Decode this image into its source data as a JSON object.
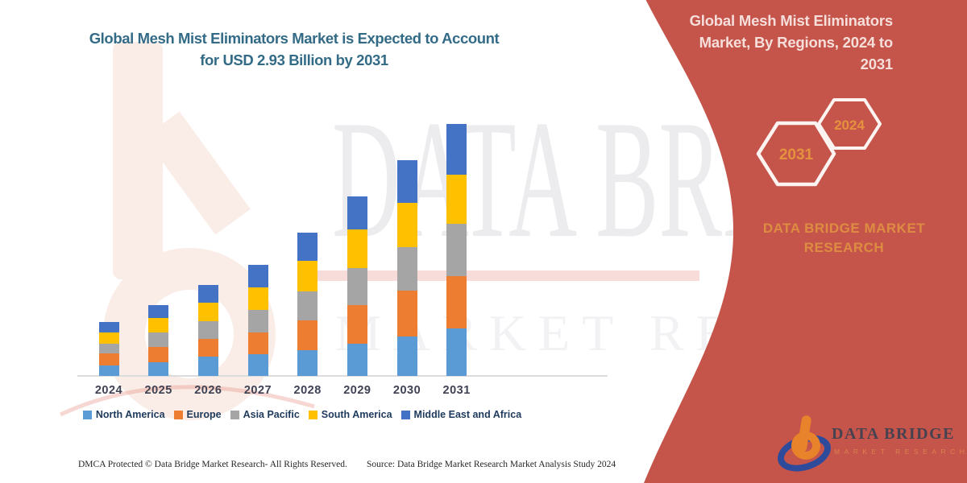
{
  "chart": {
    "title_line1": "Global Mesh Mist Eliminators Market is Expected to Account",
    "title_line2": "for USD 2.93 Billion by 2031"
  },
  "watermark": {
    "line1": "DATA BRIDGE",
    "line2": "MARKET RESEARCH"
  },
  "chart_data": {
    "type": "bar",
    "stacked": true,
    "unit": "USD Billion",
    "categories": [
      "2024",
      "2025",
      "2026",
      "2027",
      "2028",
      "2029",
      "2030",
      "2031"
    ],
    "series": [
      {
        "name": "North America",
        "color": "#5B9BD5",
        "values": [
          0.12,
          0.16,
          0.22,
          0.25,
          0.3,
          0.37,
          0.46,
          0.55
        ]
      },
      {
        "name": "Europe",
        "color": "#ED7D31",
        "values": [
          0.14,
          0.18,
          0.21,
          0.26,
          0.35,
          0.45,
          0.53,
          0.61
        ]
      },
      {
        "name": "Asia Pacific",
        "color": "#A5A5A5",
        "values": [
          0.11,
          0.17,
          0.21,
          0.26,
          0.33,
          0.43,
          0.51,
          0.61
        ]
      },
      {
        "name": "South America",
        "color": "#FFC000",
        "values": [
          0.14,
          0.16,
          0.21,
          0.26,
          0.36,
          0.45,
          0.51,
          0.57
        ]
      },
      {
        "name": "Middle East and Africa",
        "color": "#4472C4",
        "values": [
          0.12,
          0.15,
          0.21,
          0.26,
          0.33,
          0.39,
          0.5,
          0.59
        ]
      }
    ],
    "totals": [
      0.63,
      0.82,
      1.06,
      1.29,
      1.67,
      2.09,
      2.51,
      2.93
    ],
    "ylim": [
      0,
      3.0
    ],
    "grid": false,
    "legend_position": "bottom",
    "title": "Global Mesh Mist Eliminators Market is Expected to Account for USD 2.93 Billion by 2031"
  },
  "side_panel": {
    "title": "Global Mesh Mist Eliminators Market, By Regions, 2024 to 2031",
    "hexagons": [
      {
        "label": "2031"
      },
      {
        "label": "2024"
      }
    ],
    "brand_text": "DATA BRIDGE MARKET RESEARCH",
    "logo": {
      "brand": "DATA BRIDGE",
      "sub": "MARKET RESEARCH"
    }
  },
  "footer": {
    "left": "DMCA Protected © Data Bridge Market Research-  All Rights Reserved.",
    "source": "Source: Data Bridge Market Research  Market Analysis Study 2024"
  },
  "colors": {
    "panel_red": "#C5544A",
    "gold": "#E5923F",
    "title_teal": "#336B87",
    "legend_navy": "#1E3A5C",
    "axis_label": "#3E4254",
    "panel_title_pink": "#F6DFDB",
    "brand_orange": "#DE8C42",
    "logo_orange": "#E8832C",
    "logo_blue": "#2E4B9B",
    "watermark_gray": "#ECECEF",
    "pale_peach": "#FAEDE7",
    "hex_stroke": "#FDF4F2"
  }
}
